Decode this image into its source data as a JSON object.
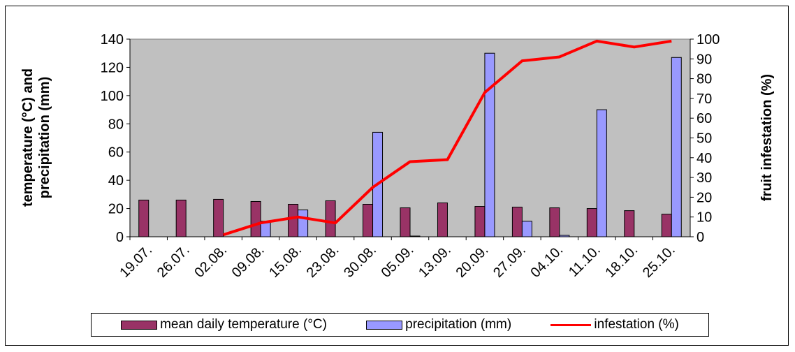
{
  "chart_data": {
    "type": "bar",
    "categories": [
      "19.07.",
      "26.07.",
      "02.08.",
      "09.08.",
      "15.08.",
      "23.08.",
      "30.08.",
      "05.09.",
      "13.09.",
      "20.09.",
      "27.09.",
      "04.10.",
      "11.10.",
      "18.10.",
      "25.10."
    ],
    "series": [
      {
        "name": "mean daily temperature (°C)",
        "type": "bar",
        "axis": "left",
        "color": "#993366",
        "values": [
          26,
          26,
          26.5,
          25,
          23,
          25.5,
          23,
          20.5,
          24,
          21.5,
          21,
          20.5,
          20,
          18.5,
          16
        ]
      },
      {
        "name": "precipitation (mm)",
        "type": "bar",
        "axis": "left",
        "color": "#9999FF",
        "values": [
          0,
          0,
          0,
          11,
          19,
          0,
          74,
          0.5,
          0,
          130,
          11,
          1,
          90,
          0,
          127
        ]
      },
      {
        "name": "infestation (%)",
        "type": "line",
        "axis": "right",
        "color": "#FF0000",
        "values": [
          null,
          null,
          1,
          7,
          10,
          7,
          25,
          38,
          39,
          73,
          89,
          91,
          99,
          96,
          99
        ]
      }
    ],
    "left_axis": {
      "label": [
        "temperature (°C) and",
        "precipitation (mm)"
      ],
      "ylim": [
        0,
        140
      ],
      "ticks": [
        0,
        20,
        40,
        60,
        80,
        100,
        120,
        140
      ]
    },
    "right_axis": {
      "label": "fruit infestation (%)",
      "ylim": [
        0,
        100
      ],
      "ticks": [
        0,
        10,
        20,
        30,
        40,
        50,
        60,
        70,
        80,
        90,
        100
      ]
    },
    "plot_background": "#C0C0C0",
    "grid": false,
    "legend_position": "bottom"
  },
  "legend": {
    "temperature": "mean daily temperature (°C)",
    "precipitation": "precipitation (mm)",
    "infestation": "infestation (%)"
  }
}
